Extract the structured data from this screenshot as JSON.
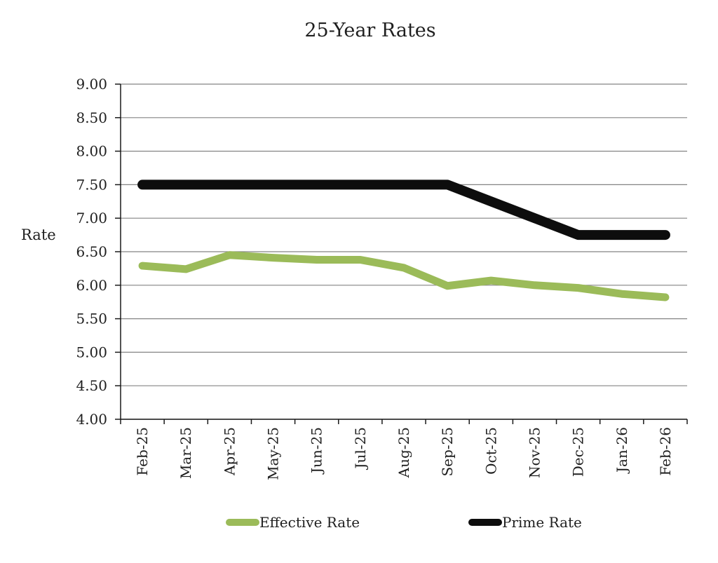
{
  "title": "25-Year Rates",
  "y_axis_label": "Rate",
  "legend": {
    "effective": {
      "label": "Effective Rate",
      "color": "#9BBB59"
    },
    "prime": {
      "label": "Prime Rate",
      "color": "#0D0D0D"
    }
  },
  "colors": {
    "effective_line": "#9BBB59",
    "prime_line": "#0D0D0D",
    "gridline": "#848484",
    "axis": "#1A1A1A",
    "text": "#1F1F1F",
    "background": "#FFFFFF"
  },
  "chart_data": {
    "type": "line",
    "title": "25-Year Rates",
    "xlabel": "",
    "ylabel": "Rate",
    "categories": [
      "Feb-25",
      "Mar-25",
      "Apr-25",
      "May-25",
      "Jun-25",
      "Jul-25",
      "Aug-25",
      "Sep-25",
      "Oct-25",
      "Nov-25",
      "Dec-25",
      "Jan-26",
      "Feb-26"
    ],
    "series": [
      {
        "name": "Effective Rate",
        "color": "#9BBB59",
        "values": [
          6.29,
          6.24,
          6.45,
          6.41,
          6.38,
          6.38,
          6.26,
          5.99,
          6.07,
          6.0,
          5.96,
          5.87,
          5.82
        ]
      },
      {
        "name": "Prime Rate",
        "color": "#0D0D0D",
        "values": [
          7.5,
          7.5,
          7.5,
          7.5,
          7.5,
          7.5,
          7.5,
          7.5,
          7.25,
          7.0,
          6.75,
          6.75,
          6.75
        ]
      }
    ],
    "ylim": [
      4.0,
      9.0
    ],
    "ytick_step": 0.5,
    "ytick_labels": [
      "4.00",
      "4.50",
      "5.00",
      "5.50",
      "6.00",
      "6.50",
      "7.00",
      "7.50",
      "8.00",
      "8.50",
      "9.00"
    ],
    "grid": true,
    "legend_position": "bottom"
  }
}
